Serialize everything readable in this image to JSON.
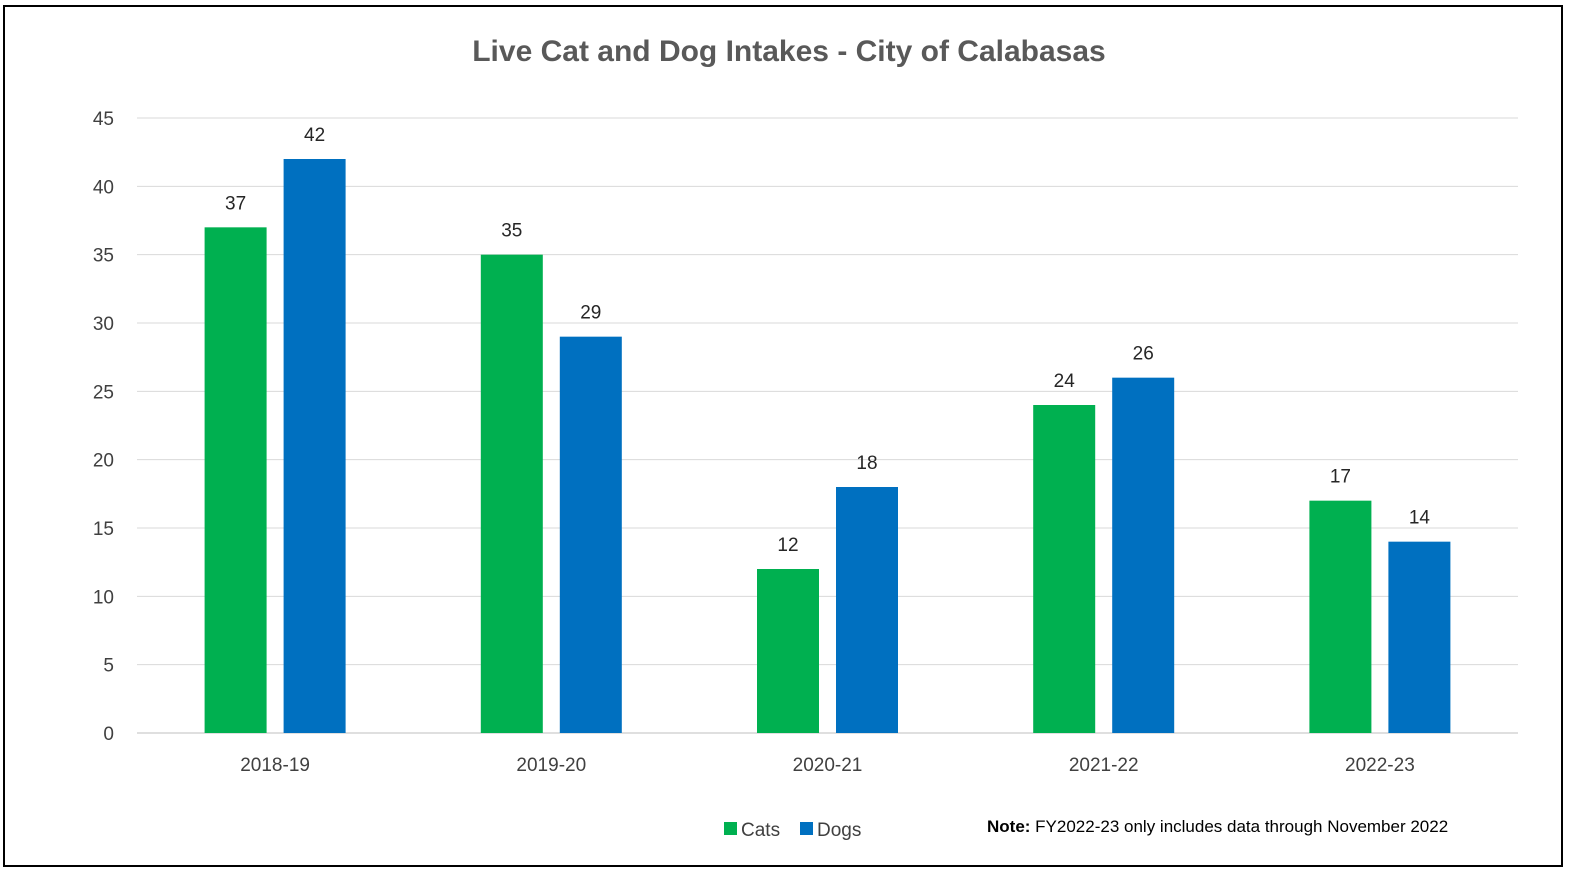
{
  "chart_data": {
    "type": "bar",
    "title": "Live Cat and Dog Intakes - City of Calabasas",
    "categories": [
      "2018-19",
      "2019-20",
      "2020-21",
      "2021-22",
      "2022-23"
    ],
    "series": [
      {
        "name": "Cats",
        "color": "#00b050",
        "values": [
          37,
          35,
          12,
          24,
          17
        ]
      },
      {
        "name": "Dogs",
        "color": "#0070c0",
        "values": [
          42,
          29,
          18,
          26,
          14
        ]
      }
    ],
    "ylim": [
      0,
      45
    ],
    "yticks": [
      0,
      5,
      10,
      15,
      20,
      25,
      30,
      35,
      40,
      45
    ],
    "grid": true,
    "legend_position": "bottom",
    "data_labels": true,
    "note": {
      "label": "Note:",
      "text": " FY2022-23 only includes data through November 2022"
    }
  }
}
